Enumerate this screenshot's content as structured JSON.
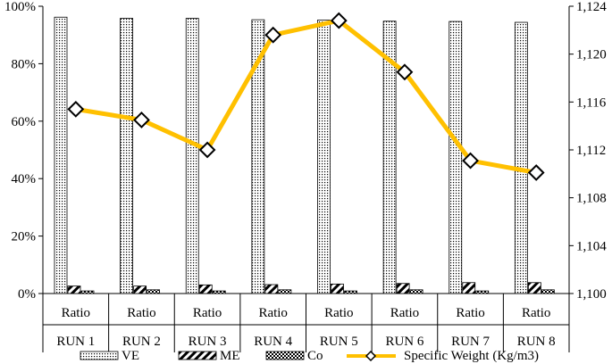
{
  "chart_data": {
    "type": "bar",
    "categories": [
      "Ratio",
      "Ratio",
      "Ratio",
      "Ratio",
      "Ratio",
      "Ratio",
      "Ratio",
      "Ratio"
    ],
    "groups": [
      "RUN 1",
      "RUN 2",
      "RUN 3",
      "RUN 4",
      "RUN 5",
      "RUN 6",
      "RUN 7",
      "RUN 8"
    ],
    "series": [
      {
        "name": "VE",
        "kind": "bar",
        "axis": "left",
        "pattern": "dots",
        "values": [
          96.2,
          95.8,
          95.8,
          95.3,
          95.2,
          94.8,
          94.7,
          94.4
        ]
      },
      {
        "name": "ME",
        "kind": "bar",
        "axis": "left",
        "pattern": "diagonal",
        "values": [
          2.6,
          2.6,
          3.0,
          3.1,
          3.3,
          3.5,
          3.8,
          3.8
        ]
      },
      {
        "name": "Co",
        "kind": "bar",
        "axis": "left",
        "pattern": "checker",
        "values": [
          0.9,
          1.3,
          0.9,
          1.3,
          0.9,
          1.3,
          0.9,
          1.3
        ]
      },
      {
        "name": "Specific Weight (Kg/m3)",
        "kind": "line",
        "axis": "right",
        "color": "#FFC000",
        "marker": "diamond",
        "values": [
          1115.4,
          1114.5,
          1112.0,
          1121.6,
          1122.8,
          1118.5,
          1111.1,
          1110.1
        ]
      }
    ],
    "y_left": {
      "min": 0,
      "max": 100,
      "ticks": [
        0,
        20,
        40,
        60,
        80,
        100
      ],
      "tick_labels": [
        "0%",
        "20%",
        "40%",
        "60%",
        "80%",
        "100%"
      ]
    },
    "y_right": {
      "min": 1100,
      "max": 1124,
      "ticks": [
        1100,
        1104,
        1108,
        1112,
        1116,
        1120,
        1124
      ],
      "tick_labels": [
        "1,100",
        "1,104",
        "1,108",
        "1,112",
        "1,116",
        "1,120",
        "1,124"
      ]
    },
    "legend_position": "bottom",
    "grid": false
  }
}
